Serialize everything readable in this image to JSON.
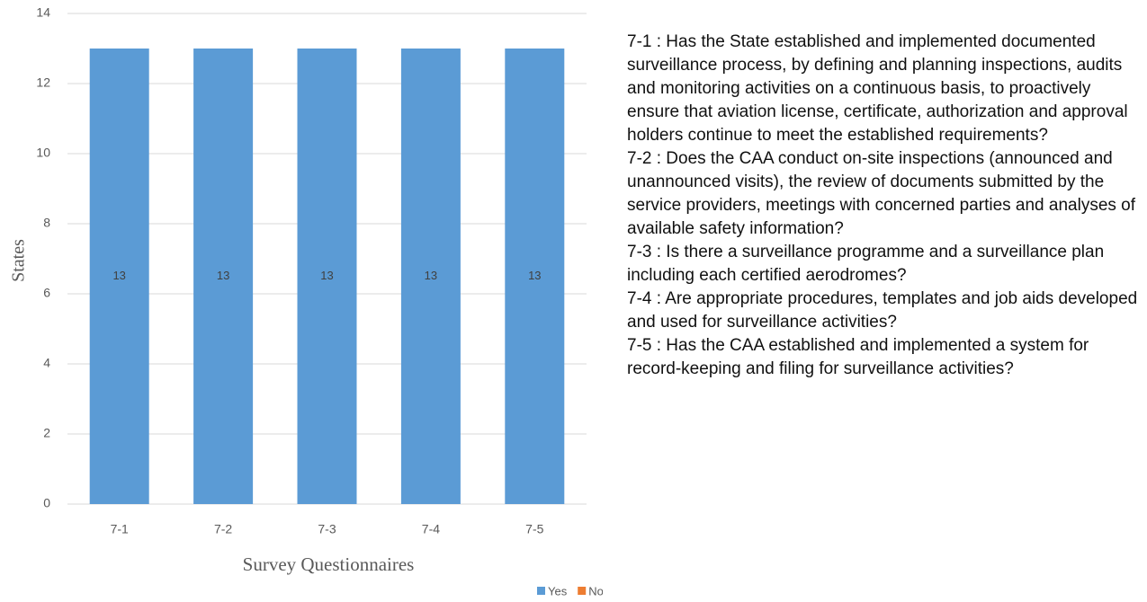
{
  "chart_data": {
    "type": "bar",
    "stacked": true,
    "y_label": "States",
    "x_label": "Survey Questionnaires",
    "categories": [
      "7-1",
      "7-2",
      "7-3",
      "7-4",
      "7-5"
    ],
    "series": [
      {
        "name": "Yes",
        "color": "#5b9bd5",
        "values": [
          13,
          13,
          13,
          13,
          13
        ]
      },
      {
        "name": "No",
        "color": "#ed7d31",
        "values": [
          0,
          0,
          0,
          0,
          0
        ]
      }
    ],
    "ylim": [
      0,
      14
    ],
    "yticks": [
      0,
      2,
      4,
      6,
      8,
      10,
      12,
      14
    ],
    "grid": true,
    "legend": "bottom"
  },
  "notes": [
    "7-1 : Has the State established and implemented documented surveillance process, by defining and planning inspections, audits and monitoring activities on a continuous basis, to proactively ensure that aviation license, certificate, authorization and approval holders continue to meet the established requirements?",
    "7-2 : Does the CAA conduct on-site inspections (announced and unannounced visits), the review of documents submitted by the service providers, meetings with concerned parties and analyses of available safety information?",
    "7-3 : Is there a surveillance programme and a surveillance plan including each certified aerodromes?",
    "7-4 : Are appropriate procedures, templates and job aids developed and used for surveillance activities?",
    "7-5 : Has the CAA established and implemented a system for record-keeping and filing for surveillance activities?"
  ]
}
